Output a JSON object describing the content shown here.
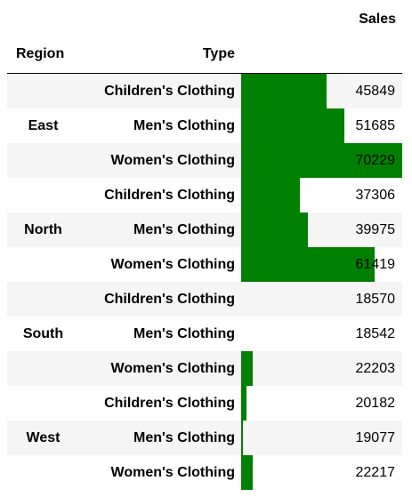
{
  "headers": {
    "sales": "Sales",
    "region": "Region",
    "type": "Type"
  },
  "colors": {
    "bar": "#008000",
    "row_alt": "#f5f5f5"
  },
  "rows": [
    {
      "region": "East",
      "type": "Children's Clothing",
      "sales": "45849"
    },
    {
      "region": "East",
      "type": "Men's Clothing",
      "sales": "51685"
    },
    {
      "region": "East",
      "type": "Women's Clothing",
      "sales": "70229"
    },
    {
      "region": "North",
      "type": "Children's Clothing",
      "sales": "37306"
    },
    {
      "region": "North",
      "type": "Men's Clothing",
      "sales": "39975"
    },
    {
      "region": "North",
      "type": "Women's Clothing",
      "sales": "61419"
    },
    {
      "region": "South",
      "type": "Children's Clothing",
      "sales": "18570"
    },
    {
      "region": "South",
      "type": "Men's Clothing",
      "sales": "18542"
    },
    {
      "region": "South",
      "type": "Women's Clothing",
      "sales": "22203"
    },
    {
      "region": "West",
      "type": "Children's Clothing",
      "sales": "20182"
    },
    {
      "region": "West",
      "type": "Men's Clothing",
      "sales": "19077"
    },
    {
      "region": "West",
      "type": "Women's Clothing",
      "sales": "22217"
    }
  ],
  "regions": [
    "East",
    "North",
    "South",
    "West"
  ],
  "bar_range": {
    "min": 18542,
    "max": 70229
  }
}
